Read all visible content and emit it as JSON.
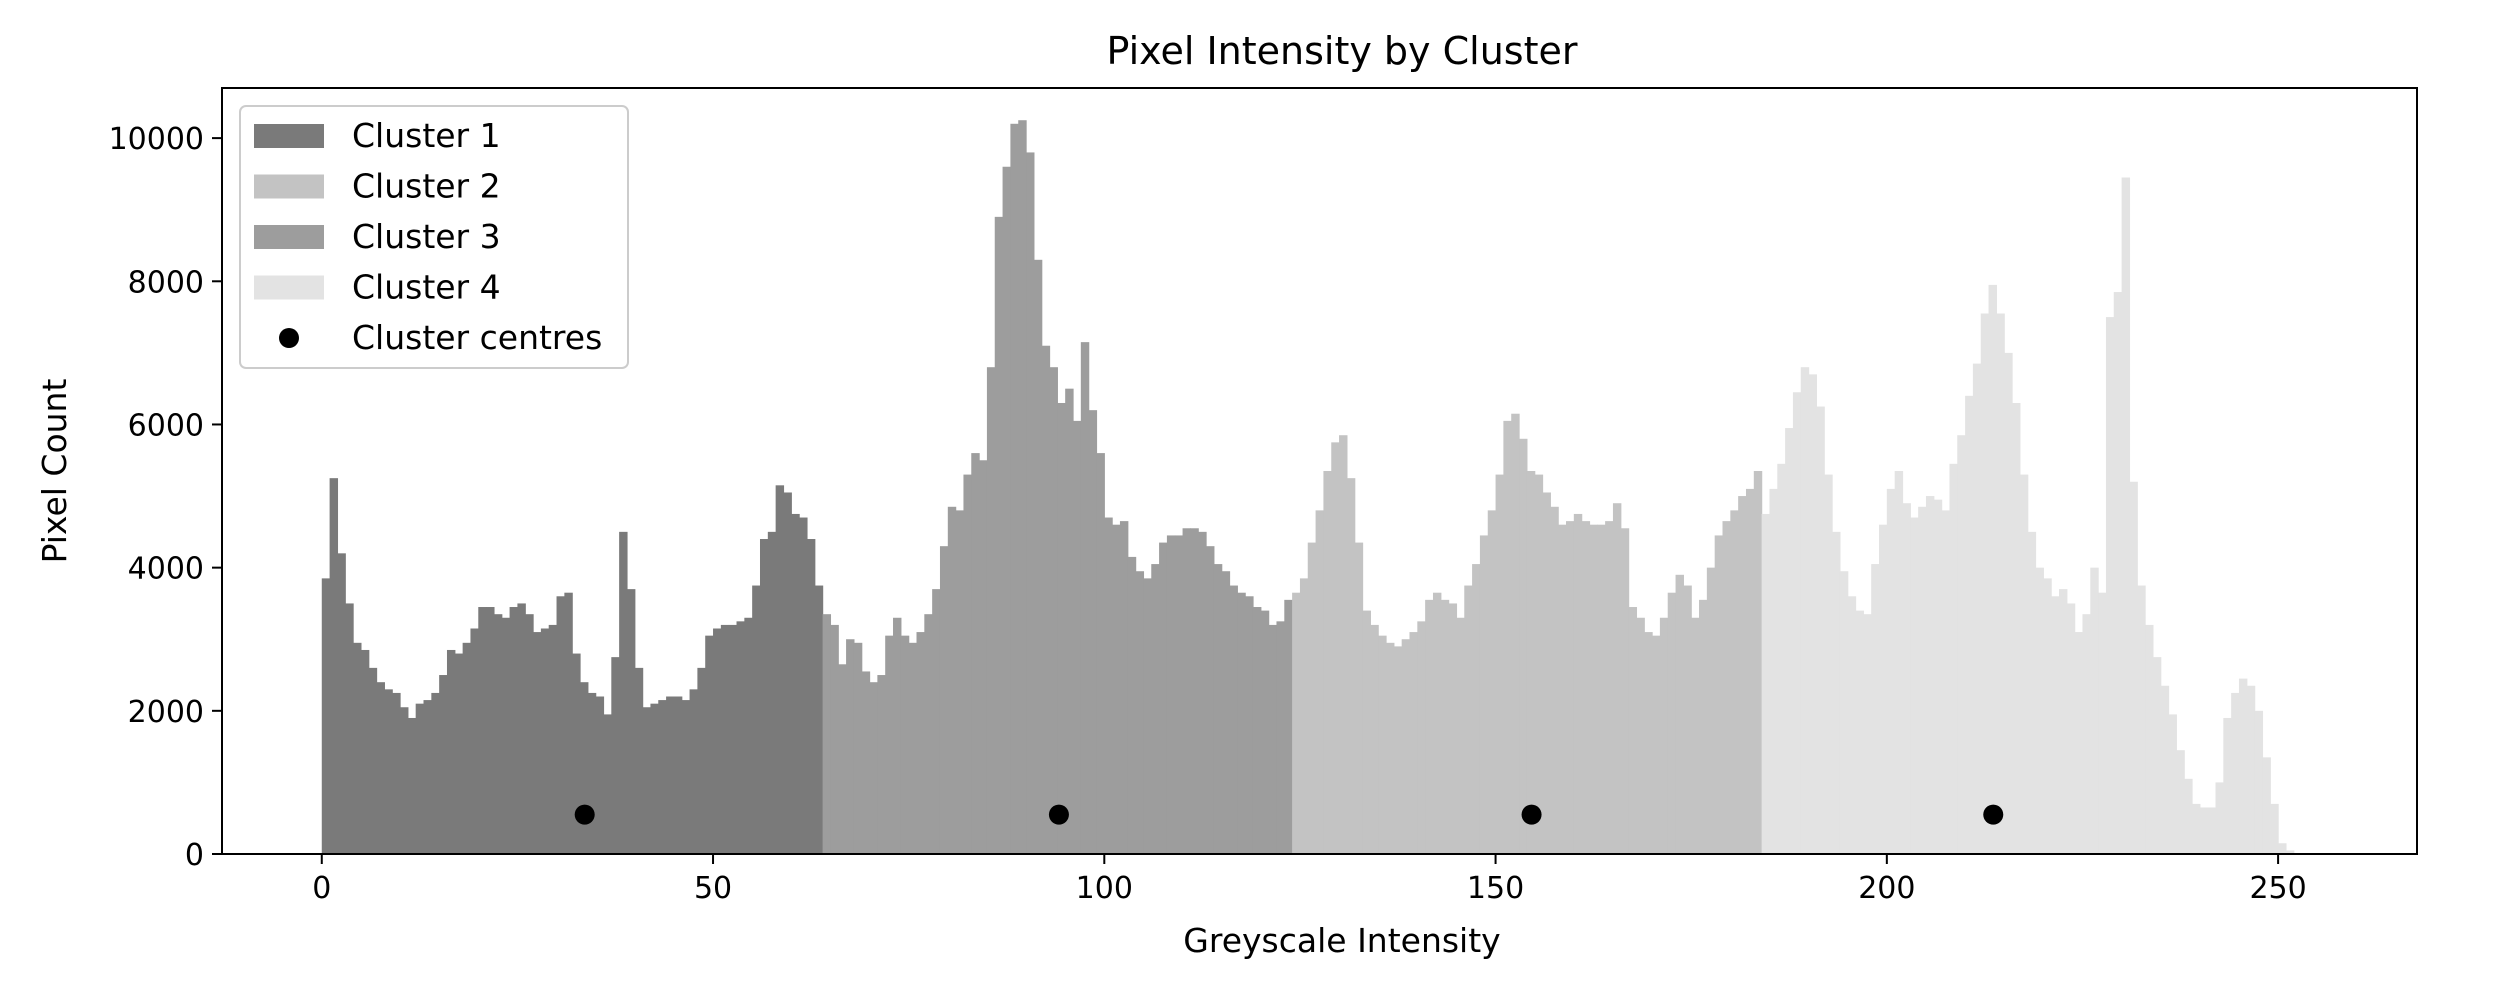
{
  "chart_data": {
    "type": "bar",
    "title": "Pixel Intensity by Cluster",
    "xlabel": "Greyscale Intensity",
    "ylabel": "Pixel Count",
    "xlim": [
      -12.75,
      267.75
    ],
    "ylim": [
      0,
      10700
    ],
    "xticks": [
      0,
      50,
      100,
      150,
      200,
      250
    ],
    "yticks": [
      0,
      2000,
      4000,
      6000,
      8000,
      10000
    ],
    "grid": false,
    "legend_position": "top-left",
    "series": [
      {
        "name": "Cluster 1",
        "color": "#7a7a7a",
        "x_start": 0,
        "values": [
          3850,
          5250,
          4200,
          3500,
          2950,
          2850,
          2600,
          2400,
          2300,
          2250,
          2050,
          1900,
          2100,
          2150,
          2250,
          2500,
          2850,
          2800,
          2950,
          3150,
          3450,
          3450,
          3350,
          3300,
          3450,
          3500,
          3350,
          3100,
          3150,
          3200,
          3600,
          3650,
          2800,
          2400,
          2250,
          2200,
          1950,
          2750,
          4500,
          3700,
          2600,
          2050,
          2100,
          2150,
          2200,
          2200,
          2150,
          2300,
          2600,
          3050,
          3150,
          3200,
          3200,
          3250,
          3300,
          3750,
          4400,
          4500,
          5150,
          5050,
          4750,
          4700,
          4400,
          3750
        ]
      },
      {
        "name": "Cluster 3",
        "color": "#9d9d9d",
        "x_start": 64,
        "values": [
          3350,
          3200,
          2650,
          3000,
          2950,
          2550,
          2400,
          2500,
          3050,
          3300,
          3050,
          2950,
          3100,
          3350,
          3700,
          4300,
          4850,
          4800,
          5300,
          5600,
          5500,
          6800,
          8900,
          9600,
          10200,
          10250,
          9800,
          8300,
          7100,
          6800,
          6300,
          6500,
          6050,
          7150,
          6200,
          5600,
          4700,
          4600,
          4650,
          4150,
          3950,
          3850,
          4050,
          4350,
          4450,
          4450,
          4550,
          4550,
          4500,
          4300,
          4050,
          3950,
          3750,
          3650,
          3600,
          3450,
          3400,
          3200,
          3250,
          3550
        ]
      },
      {
        "name": "Cluster 2",
        "color": "#c3c3c3",
        "x_start": 124,
        "values": [
          3650,
          3850,
          4350,
          4800,
          5350,
          5750,
          5850,
          5250,
          4350,
          3400,
          3200,
          3050,
          2950,
          2900,
          3000,
          3100,
          3250,
          3550,
          3650,
          3550,
          3500,
          3300,
          3750,
          4050,
          4450,
          4800,
          5300,
          6050,
          6150,
          5800,
          5350,
          5300,
          5050,
          4850,
          4600,
          4650,
          4750,
          4650,
          4600,
          4600,
          4650,
          4900,
          4550,
          3450,
          3300,
          3100,
          3050,
          3300,
          3650,
          3900,
          3750,
          3300,
          3550,
          4000,
          4450,
          4650,
          4800,
          5000,
          5100,
          5350
        ]
      },
      {
        "name": "Cluster 4",
        "color": "#e3e3e3",
        "x_start": 184,
        "values": [
          4750,
          5100,
          5450,
          5950,
          6450,
          6800,
          6700,
          6250,
          5300,
          4500,
          3950,
          3600,
          3400,
          3350,
          4050,
          4600,
          5100,
          5350,
          4900,
          4700,
          4850,
          5000,
          4950,
          4800,
          5450,
          5850,
          6400,
          6850,
          7550,
          7950,
          7550,
          7000,
          6300,
          5300,
          4500,
          4000,
          3850,
          3600,
          3700,
          3500,
          3100,
          3350,
          4000,
          3650,
          7500,
          7850,
          9450,
          5200,
          3750,
          3200,
          2750,
          2350,
          1950,
          1450,
          1050,
          700,
          650,
          650,
          1000,
          1900,
          2250,
          2450,
          2350,
          2000,
          1350,
          700,
          150,
          50
        ]
      }
    ],
    "centres": {
      "name": "Cluster centres",
      "color": "#000000",
      "points": [
        {
          "x": 33.6,
          "y": 550
        },
        {
          "x": 94.2,
          "y": 550
        },
        {
          "x": 154.6,
          "y": 550
        },
        {
          "x": 213.6,
          "y": 550
        }
      ]
    },
    "legend": [
      "Cluster 1",
      "Cluster 2",
      "Cluster 3",
      "Cluster 4",
      "Cluster centres"
    ]
  }
}
